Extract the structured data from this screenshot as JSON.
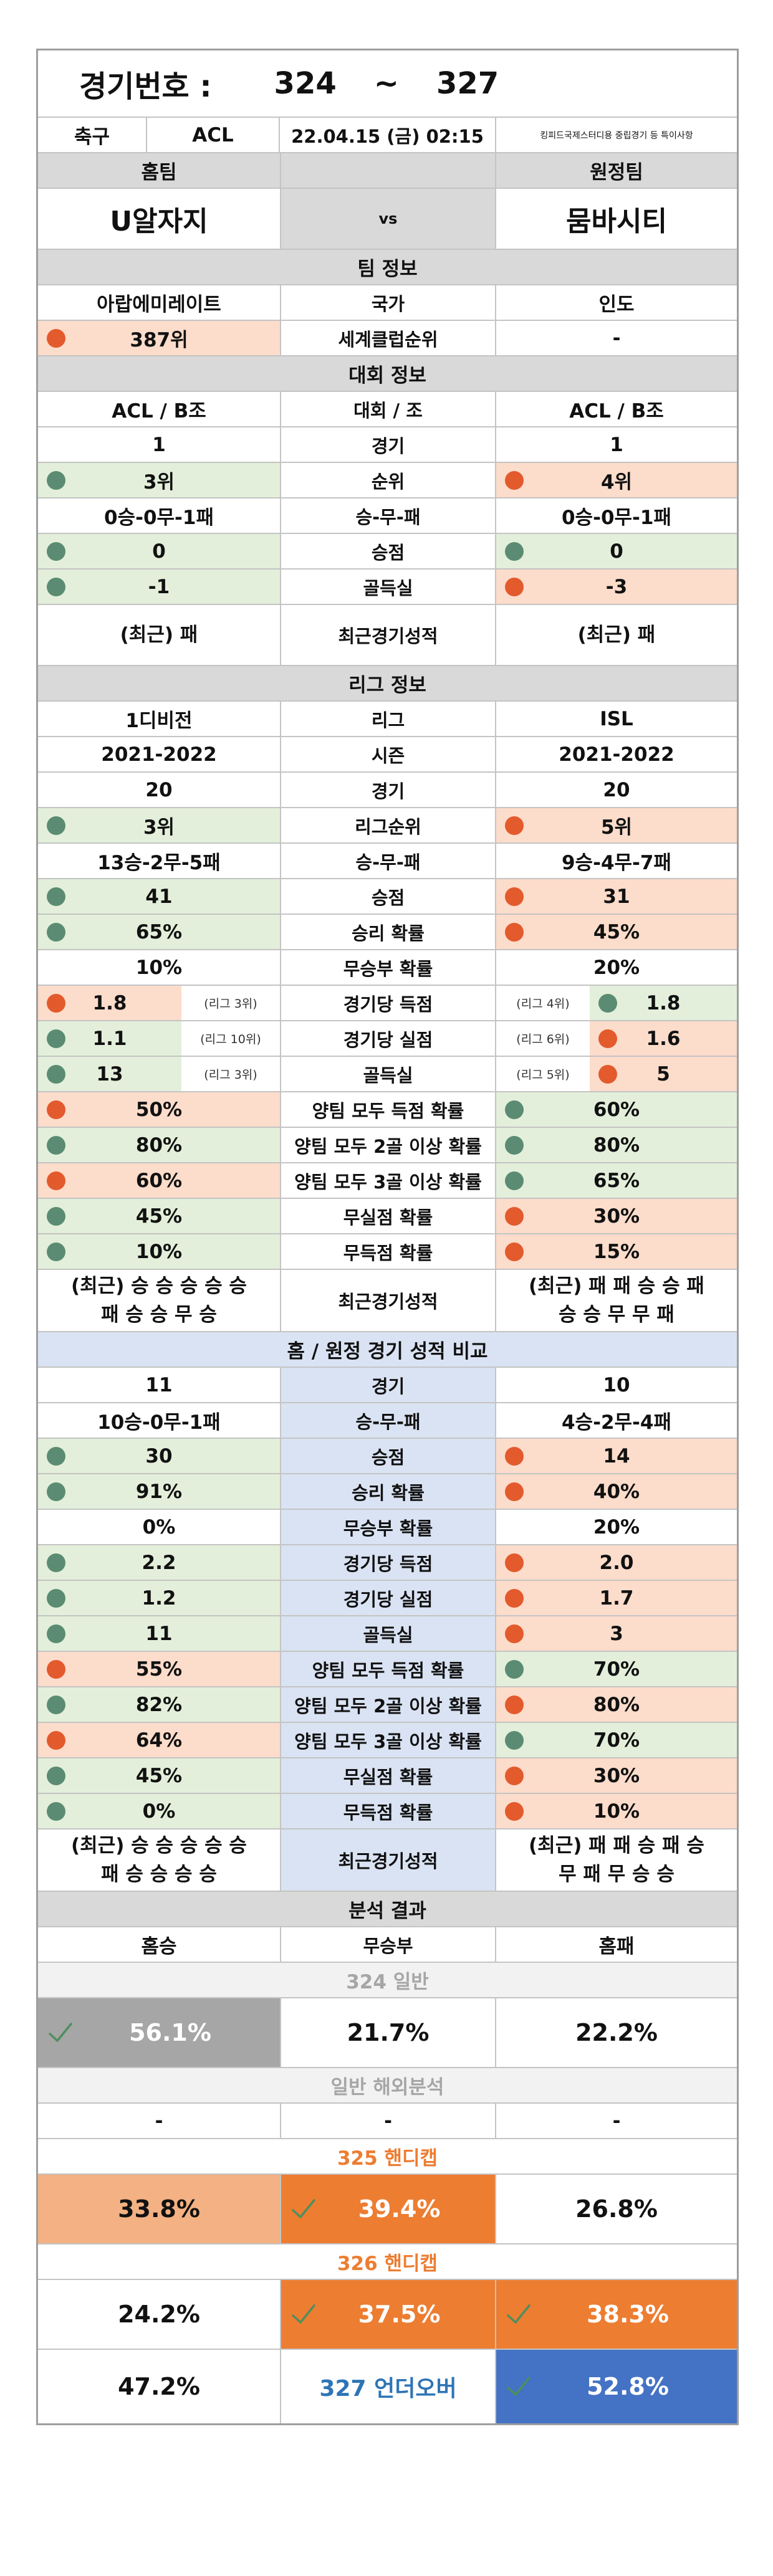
{
  "header": {
    "label": "경기번호 :",
    "from": "324",
    "sep": "~",
    "to": "327"
  },
  "info": {
    "sport": "축구",
    "league": "ACL",
    "datetime": "22.04.15 (금) 02:15",
    "note": "킹피드국제스터디용 중립경기 등 특이사항"
  },
  "teams": {
    "home_head": "홈팀",
    "away_head": "원정팀",
    "home": "U알자지",
    "vs": "vs",
    "away": "뭄바시티"
  },
  "team_info": {
    "title": "팀 정보",
    "rows": [
      {
        "label": "국가",
        "home": "아랍에미레이트",
        "away": "인도",
        "hdot": "",
        "adot": "",
        "hbg": "",
        "abg": ""
      },
      {
        "label": "세계클럽순위",
        "home": "387위",
        "away": "-",
        "hdot": "o",
        "adot": "",
        "hbg": "o",
        "abg": ""
      }
    ]
  },
  "tourn": {
    "title": "대회 정보",
    "rows": [
      {
        "label": "대회 / 조",
        "home": "ACL / B조",
        "away": "ACL / B조",
        "hdot": "",
        "adot": "",
        "hbg": "",
        "abg": ""
      },
      {
        "label": "경기",
        "home": "1",
        "away": "1",
        "hdot": "",
        "adot": "",
        "hbg": "",
        "abg": ""
      },
      {
        "label": "순위",
        "home": "3위",
        "away": "4위",
        "hdot": "g",
        "adot": "o",
        "hbg": "g",
        "abg": "o"
      },
      {
        "label": "승-무-패",
        "home": "0승-0무-1패",
        "away": "0승-0무-1패",
        "hdot": "",
        "adot": "",
        "hbg": "",
        "abg": ""
      },
      {
        "label": "승점",
        "home": "0",
        "away": "0",
        "hdot": "g",
        "adot": "g",
        "hbg": "g",
        "abg": "g"
      },
      {
        "label": "골득실",
        "home": "-1",
        "away": "-3",
        "hdot": "g",
        "adot": "o",
        "hbg": "g",
        "abg": "o"
      }
    ],
    "recent": {
      "label": "최근경기성적",
      "home1": "(최근) 패",
      "home2": "",
      "away1": "(최근) 패",
      "away2": ""
    }
  },
  "league": {
    "title": "리그 정보",
    "rows": [
      {
        "label": "리그",
        "home": "1디비전",
        "away": "ISL",
        "hdot": "",
        "adot": "",
        "hbg": "",
        "abg": ""
      },
      {
        "label": "시즌",
        "home": "2021-2022",
        "away": "2021-2022",
        "hdot": "",
        "adot": "",
        "hbg": "",
        "abg": ""
      },
      {
        "label": "경기",
        "home": "20",
        "away": "20",
        "hdot": "",
        "adot": "",
        "hbg": "",
        "abg": ""
      },
      {
        "label": "리그순위",
        "home": "3위",
        "away": "5위",
        "hdot": "g",
        "adot": "o",
        "hbg": "g",
        "abg": "o"
      },
      {
        "label": "승-무-패",
        "home": "13승-2무-5패",
        "away": "9승-4무-7패",
        "hdot": "",
        "adot": "",
        "hbg": "",
        "abg": ""
      },
      {
        "label": "승점",
        "home": "41",
        "away": "31",
        "hdot": "g",
        "adot": "o",
        "hbg": "g",
        "abg": "o"
      },
      {
        "label": "승리 확률",
        "home": "65%",
        "away": "45%",
        "hdot": "g",
        "adot": "o",
        "hbg": "g",
        "abg": "o"
      },
      {
        "label": "무승부 확률",
        "home": "10%",
        "away": "20%",
        "hdot": "",
        "adot": "",
        "hbg": "",
        "abg": ""
      }
    ],
    "ranked": [
      {
        "label": "경기당 득점",
        "home": "1.8",
        "hrank": "(리그 3위)",
        "away": "1.8",
        "arank": "(리그 4위)",
        "hdot": "o",
        "adot": "g",
        "hbg": "o",
        "abg": "g"
      },
      {
        "label": "경기당 실점",
        "home": "1.1",
        "hrank": "(리그 10위)",
        "away": "1.6",
        "arank": "(리그 6위)",
        "hdot": "g",
        "adot": "o",
        "hbg": "g",
        "abg": "o"
      },
      {
        "label": "골득실",
        "home": "13",
        "hrank": "(리그 3위)",
        "away": "5",
        "arank": "(리그 5위)",
        "hdot": "g",
        "adot": "o",
        "hbg": "g",
        "abg": "o"
      }
    ],
    "rows2": [
      {
        "label": "양팀 모두 득점 확률",
        "home": "50%",
        "away": "60%",
        "hdot": "o",
        "adot": "g",
        "hbg": "o",
        "abg": "g"
      },
      {
        "label": "양팀 모두 2골 이상 확률",
        "home": "80%",
        "away": "80%",
        "hdot": "g",
        "adot": "g",
        "hbg": "g",
        "abg": "g"
      },
      {
        "label": "양팀 모두 3골 이상 확률",
        "home": "60%",
        "away": "65%",
        "hdot": "o",
        "adot": "g",
        "hbg": "o",
        "abg": "g"
      },
      {
        "label": "무실점 확률",
        "home": "45%",
        "away": "30%",
        "hdot": "g",
        "adot": "o",
        "hbg": "g",
        "abg": "o"
      },
      {
        "label": "무득점 확률",
        "home": "10%",
        "away": "15%",
        "hdot": "g",
        "adot": "o",
        "hbg": "g",
        "abg": "o"
      }
    ],
    "recent": {
      "label": "최근경기성적",
      "home1": "(최근) 승 승 승 승 승",
      "home2": "패 승 승 무 승",
      "away1": "(최근) 패 패 승 승 패",
      "away2": "승 승 무 무 패"
    }
  },
  "compare": {
    "title": "홈 / 원정 경기 성적 비교",
    "rows": [
      {
        "label": "경기",
        "home": "11",
        "away": "10",
        "hdot": "",
        "adot": "",
        "hbg": "",
        "abg": ""
      },
      {
        "label": "승-무-패",
        "home": "10승-0무-1패",
        "away": "4승-2무-4패",
        "hdot": "",
        "adot": "",
        "hbg": "",
        "abg": ""
      },
      {
        "label": "승점",
        "home": "30",
        "away": "14",
        "hdot": "g",
        "adot": "o",
        "hbg": "g",
        "abg": "o"
      },
      {
        "label": "승리 확률",
        "home": "91%",
        "away": "40%",
        "hdot": "g",
        "adot": "o",
        "hbg": "g",
        "abg": "o"
      },
      {
        "label": "무승부 확률",
        "home": "0%",
        "away": "20%",
        "hdot": "",
        "adot": "",
        "hbg": "",
        "abg": ""
      },
      {
        "label": "경기당 득점",
        "home": "2.2",
        "away": "2.0",
        "hdot": "g",
        "adot": "o",
        "hbg": "g",
        "abg": "o"
      },
      {
        "label": "경기당 실점",
        "home": "1.2",
        "away": "1.7",
        "hdot": "g",
        "adot": "o",
        "hbg": "g",
        "abg": "o"
      },
      {
        "label": "골득실",
        "home": "11",
        "away": "3",
        "hdot": "g",
        "adot": "o",
        "hbg": "g",
        "abg": "o"
      },
      {
        "label": "양팀 모두 득점 확률",
        "home": "55%",
        "away": "70%",
        "hdot": "o",
        "adot": "g",
        "hbg": "o",
        "abg": "g"
      },
      {
        "label": "양팀 모두 2골 이상 확률",
        "home": "82%",
        "away": "80%",
        "hdot": "g",
        "adot": "o",
        "hbg": "g",
        "abg": "o"
      },
      {
        "label": "양팀 모두 3골 이상 확률",
        "home": "64%",
        "away": "70%",
        "hdot": "o",
        "adot": "g",
        "hbg": "o",
        "abg": "g"
      },
      {
        "label": "무실점 확률",
        "home": "45%",
        "away": "30%",
        "hdot": "g",
        "adot": "o",
        "hbg": "g",
        "abg": "o"
      },
      {
        "label": "무득점 확률",
        "home": "0%",
        "away": "10%",
        "hdot": "g",
        "adot": "o",
        "hbg": "g",
        "abg": "o"
      }
    ],
    "recent": {
      "label": "최근경기성적",
      "home1": "(최근) 승 승 승 승 승",
      "home2": "패 승 승 승 승",
      "away1": "(최근) 패 패 승 패 승",
      "away2": "무 패 무 승 승"
    }
  },
  "analysis": {
    "title": "분석 결과",
    "h_win": "홈승",
    "draw": "무승부",
    "h_lose": "홈패",
    "general": {
      "title": "324 일반",
      "home": "56.1%",
      "draw": "21.7%",
      "away": "22.2%"
    },
    "overseas": {
      "title": "일반 해외분석",
      "home": "-",
      "draw": "-",
      "away": "-"
    },
    "handicap1": {
      "title": "325 핸디캡",
      "home": "33.8%",
      "draw": "39.4%",
      "away": "26.8%"
    },
    "handicap2": {
      "title": "326 핸디캡",
      "home": "24.2%",
      "draw": "37.5%",
      "away": "38.3%"
    },
    "underover": {
      "title": "327 언더오버",
      "under": "47.2%",
      "over": "52.8%"
    }
  },
  "colors": {
    "green_bg": "#e3efda",
    "orange_bg": "#fcdcca",
    "green_dot": "#5b8c73",
    "orange_dot": "#e35a2d",
    "blue_bg": "#dae3f3",
    "accent_orange": "#ed7d31",
    "light_orange": "#f4b183",
    "blue": "#4472c4",
    "gray": "#a6a6a6"
  },
  "icons": {
    "pick": "check-icon"
  }
}
